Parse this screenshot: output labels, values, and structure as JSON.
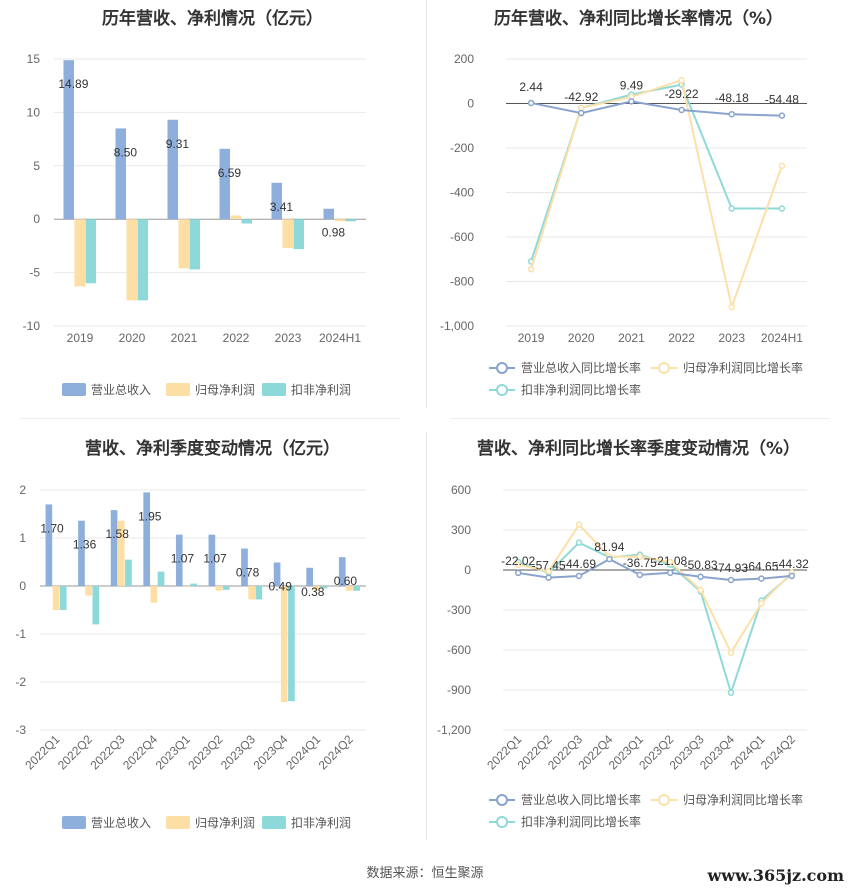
{
  "footer": {
    "source": "数据来源：恒生聚源",
    "watermark": "www.365jz.com"
  },
  "colors": {
    "revenue": "#8eaedc",
    "net_profit": "#fddfa5",
    "deducted_profit": "#8dd8d8",
    "revenue_line": "#8aa3cc",
    "net_line": "#fde0a8",
    "deducted_line": "#8fd9d9"
  },
  "chart_data": [
    {
      "type": "bar",
      "title": "历年营收、净利情况（亿元）",
      "categories": [
        "2019",
        "2020",
        "2021",
        "2022",
        "2023",
        "2024H1"
      ],
      "ylim": [
        -10,
        15
      ],
      "yticks": [
        15,
        10,
        5,
        0,
        -5,
        -10
      ],
      "series": [
        {
          "name": "营业总收入",
          "values": [
            14.89,
            8.5,
            9.31,
            6.59,
            3.41,
            0.98
          ]
        },
        {
          "name": "归母净利润",
          "values": [
            -6.3,
            -7.6,
            -4.6,
            0.35,
            -2.7,
            -0.2
          ]
        },
        {
          "name": "扣非净利润",
          "values": [
            -6.0,
            -7.6,
            -4.7,
            -0.4,
            -2.8,
            -0.2
          ]
        }
      ],
      "data_labels": [
        "14.89",
        "8.50",
        "9.31",
        "6.59",
        "3.41",
        "0.98"
      ],
      "legend": "bottom"
    },
    {
      "type": "line",
      "title": "历年营收、净利同比增长率情况（%）",
      "categories": [
        "2019",
        "2020",
        "2021",
        "2022",
        "2023",
        "2024H1"
      ],
      "ylim": [
        -1000,
        200
      ],
      "yticks": [
        "200",
        "0",
        "-200",
        "-400",
        "-600",
        "-800",
        "-1,000"
      ],
      "ytick_values": [
        200,
        0,
        -200,
        -400,
        -600,
        -800,
        -1000
      ],
      "series": [
        {
          "name": "营业总收入同比增长率",
          "values": [
            2.44,
            -42.92,
            9.49,
            -29.22,
            -48.18,
            -54.48
          ]
        },
        {
          "name": "归母净利润同比增长率",
          "values": [
            -745,
            -20,
            30,
            105,
            -915,
            -280
          ]
        },
        {
          "name": "扣非净利润同比增长率",
          "values": [
            -710,
            -20,
            40,
            85,
            -472,
            -472
          ]
        }
      ],
      "data_labels": [
        "2.44",
        "-42.92",
        "9.49",
        "-29.22",
        "-48.18",
        "-54.48"
      ],
      "legend": "bottom"
    },
    {
      "type": "bar",
      "title": "营收、净利季度变动情况（亿元）",
      "categories": [
        "2022Q1",
        "2022Q2",
        "2022Q3",
        "2022Q4",
        "2023Q1",
        "2023Q2",
        "2023Q3",
        "2023Q4",
        "2024Q1",
        "2024Q2"
      ],
      "ylim": [
        -3,
        2
      ],
      "yticks": [
        2,
        1,
        0,
        -1,
        -2,
        -3
      ],
      "series": [
        {
          "name": "营业总收入",
          "values": [
            1.7,
            1.36,
            1.58,
            1.95,
            1.07,
            1.07,
            0.78,
            0.49,
            0.38,
            0.6
          ]
        },
        {
          "name": "归母净利润",
          "values": [
            -0.5,
            -0.2,
            1.36,
            -0.35,
            -0.02,
            -0.1,
            -0.28,
            -2.42,
            -0.1,
            -0.1
          ]
        },
        {
          "name": "扣非净利润",
          "values": [
            -0.5,
            -0.8,
            0.55,
            0.3,
            0.05,
            -0.08,
            -0.28,
            -2.4,
            -0.05,
            -0.1
          ]
        }
      ],
      "data_labels": [
        "1.70",
        "1.36",
        "1.58",
        "1.95",
        "1.07",
        "1.07",
        "0.78",
        "0.49",
        "0.38",
        "0.60"
      ],
      "legend": "bottom"
    },
    {
      "type": "line",
      "title": "营收、净利同比增长率季度变动情况（%）",
      "categories": [
        "2022Q1",
        "2022Q2",
        "2022Q3",
        "2022Q4",
        "2023Q1",
        "2023Q2",
        "2023Q3",
        "2023Q4",
        "2024Q1",
        "2024Q2"
      ],
      "ylim": [
        -1200,
        600
      ],
      "yticks": [
        "600",
        "300",
        "0",
        "-300",
        "-600",
        "-900",
        "-1,200"
      ],
      "ytick_values": [
        600,
        300,
        0,
        -300,
        -600,
        -900,
        -1200
      ],
      "series": [
        {
          "name": "营业总收入同比增长率",
          "values": [
            -22.02,
            -57.45,
            -44.69,
            81.94,
            -36.75,
            -21.08,
            -50.83,
            -74.93,
            -64.65,
            -44.32
          ]
        },
        {
          "name": "归母净利润同比增长率",
          "values": [
            40,
            -10,
            340,
            100,
            100,
            60,
            -150,
            -620,
            -250,
            -20
          ]
        },
        {
          "name": "扣非净利润同比增长率",
          "values": [
            60,
            -20,
            205,
            95,
            115,
            40,
            -160,
            -920,
            -230,
            -30
          ]
        }
      ],
      "data_labels": [
        "-22.02",
        "-57.45",
        "-44.69",
        "81.94",
        "-36.75",
        "-21.08",
        "-50.83",
        "-74.93",
        "-64.65",
        "-44.32"
      ],
      "legend": "bottom"
    }
  ]
}
